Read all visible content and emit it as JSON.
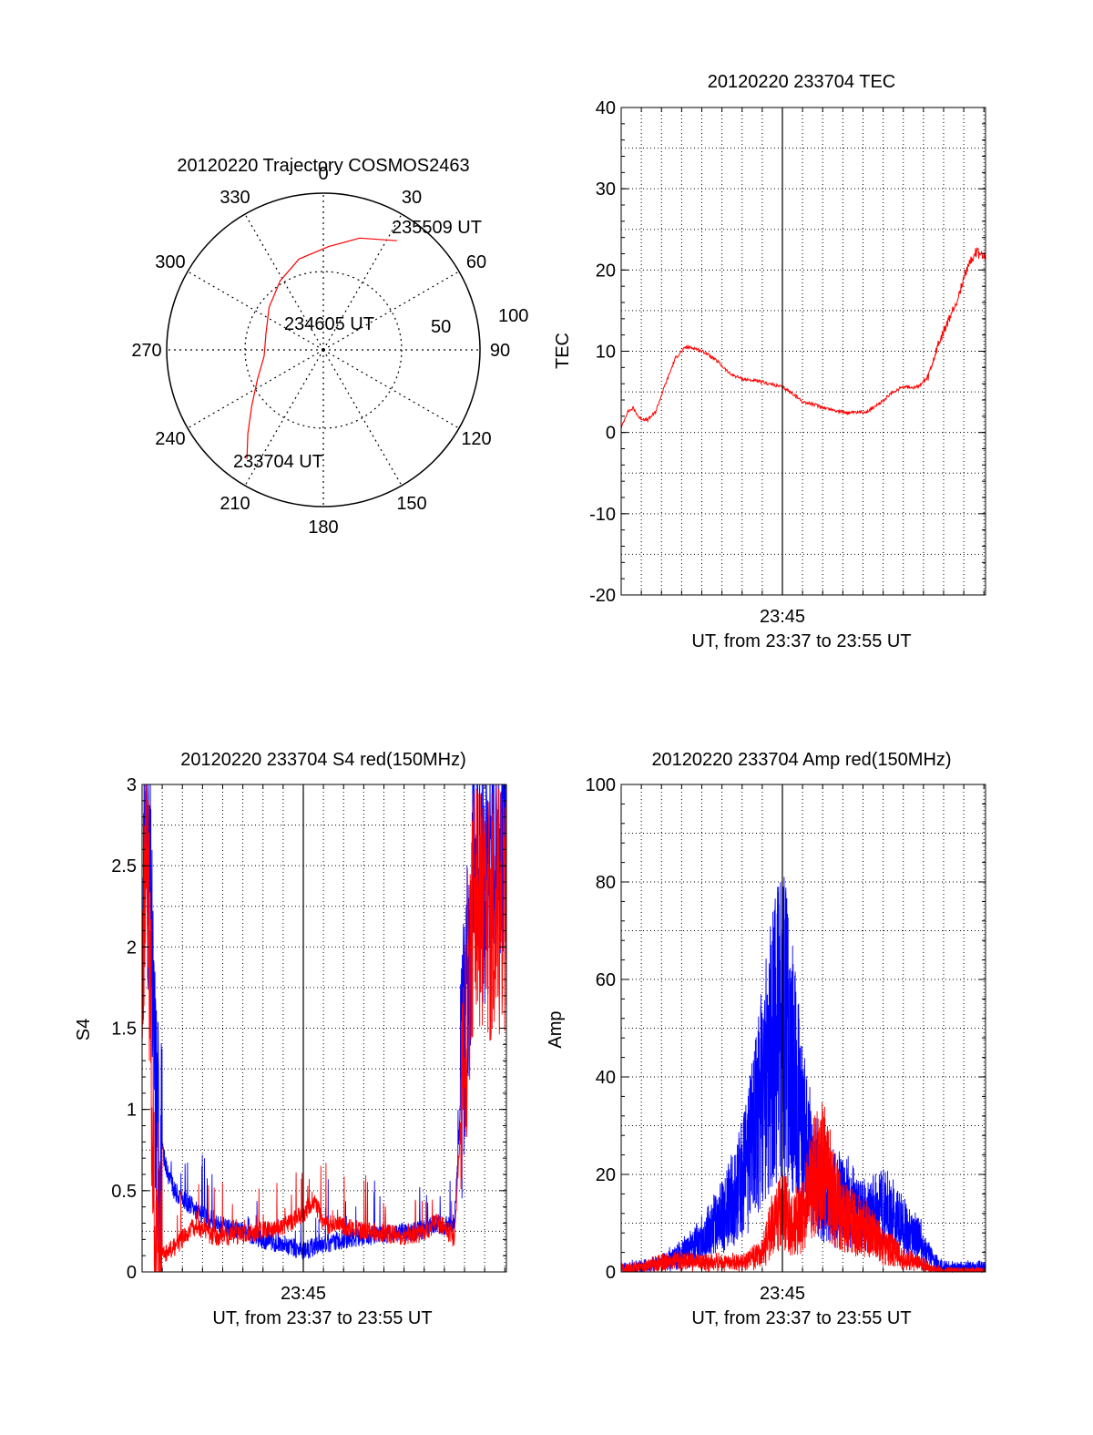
{
  "chart_data": [
    {
      "type": "polar",
      "title": "20120220 Trajectory COSMOS2463",
      "angle_ticks": [
        "0",
        "30",
        "60",
        "90",
        "120",
        "150",
        "180",
        "210",
        "240",
        "270",
        "300",
        "330"
      ],
      "angle_tick_values": [
        0,
        30,
        60,
        90,
        120,
        150,
        180,
        210,
        240,
        270,
        300,
        330
      ],
      "radial_ticks": [
        "50",
        "100"
      ],
      "radial_tick_values": [
        50,
        100
      ],
      "r_max": 100,
      "line_color": "#ff0000",
      "trajectory": [
        {
          "az": 215,
          "r": 85
        },
        {
          "az": 222,
          "r": 72
        },
        {
          "az": 232,
          "r": 58
        },
        {
          "az": 246,
          "r": 46
        },
        {
          "az": 264,
          "r": 38
        },
        {
          "az": 285,
          "r": 38
        },
        {
          "az": 308,
          "r": 44
        },
        {
          "az": 328,
          "r": 52
        },
        {
          "az": 345,
          "r": 60
        },
        {
          "az": 3,
          "r": 66
        },
        {
          "az": 18,
          "r": 75
        },
        {
          "az": 34,
          "r": 84
        }
      ],
      "annotations": {
        "start": "233704 UT",
        "mid": "234605 UT",
        "end": "235509 UT"
      }
    },
    {
      "type": "line",
      "title": "20120220 233704 TEC",
      "xlabel": "UT, from 23:37 to 23:55 UT",
      "ylabel": "TEC",
      "x_tick_labels": [
        "23:45"
      ],
      "x_range_minutes": [
        0,
        18.08
      ],
      "x_tick_minutes": [
        8
      ],
      "ylim": [
        -20,
        40
      ],
      "y_ticks": [
        -20,
        -10,
        0,
        10,
        20,
        30,
        40
      ],
      "grid": true,
      "series": [
        {
          "color": "#ff0000",
          "x": [
            0,
            0.3,
            0.6,
            0.9,
            1.3,
            1.7,
            2.2,
            2.7,
            3.2,
            3.6,
            4.2,
            4.8,
            5.4,
            6.0,
            6.5,
            7.0,
            7.5,
            8.0,
            8.5,
            9.0,
            9.6,
            10.3,
            11.0,
            11.6,
            12.2,
            12.8,
            13.4,
            14.0,
            14.6,
            15.2,
            15.7,
            16.2,
            16.7,
            17.2,
            17.6,
            18.08
          ],
          "y": [
            0.5,
            2.5,
            3,
            1.8,
            1.5,
            2.5,
            6,
            9.2,
            10.5,
            10.4,
            9.8,
            8.7,
            7.2,
            6.6,
            6.4,
            6.2,
            5.9,
            5.6,
            4.8,
            3.8,
            3.4,
            2.9,
            2.5,
            2.4,
            2.6,
            3.5,
            4.8,
            5.7,
            5.5,
            6.5,
            10.5,
            13.5,
            16.5,
            20.5,
            22.2,
            21.5
          ]
        }
      ]
    },
    {
      "type": "line",
      "title": "20120220 233704 S4 red(150MHz)",
      "xlabel": "UT, from 23:37 to 23:55 UT",
      "ylabel": "S4",
      "x_tick_labels": [
        "23:45"
      ],
      "x_range_minutes": [
        0,
        18.08
      ],
      "x_tick_minutes": [
        8
      ],
      "ylim": [
        0,
        3
      ],
      "y_ticks": [
        0,
        0.5,
        1,
        1.5,
        2,
        2.5,
        3
      ],
      "y_tick_labels": [
        "0",
        "0.5",
        "1",
        "1.5",
        "2",
        "2.5",
        "3"
      ],
      "grid": true,
      "series": [
        {
          "color": "#0000ff",
          "x": [
            0,
            0.2,
            0.4,
            0.6,
            0.8,
            1.0,
            1.3,
            1.6,
            2.0,
            2.5,
            3.0,
            3.5,
            4.0,
            5.0,
            6.0,
            7.0,
            8.0,
            9.0,
            10.0,
            11.0,
            12.0,
            13.0,
            14.0,
            14.6,
            15.0,
            15.5,
            16.0,
            16.5,
            17.0,
            17.5,
            18.08
          ],
          "y": [
            2.2,
            2.7,
            2.3,
            1.3,
            0.9,
            0.75,
            0.6,
            0.5,
            0.45,
            0.4,
            0.35,
            0.3,
            0.28,
            0.25,
            0.2,
            0.17,
            0.13,
            0.17,
            0.2,
            0.22,
            0.23,
            0.24,
            0.26,
            0.3,
            0.28,
            0.3,
            1.5,
            2.6,
            2.4,
            2.6,
            2.7
          ]
        },
        {
          "color": "#ff0000",
          "x": [
            0,
            0.2,
            0.4,
            0.6,
            0.8,
            1.0,
            1.3,
            1.6,
            2.0,
            2.5,
            3.0,
            3.5,
            4.0,
            5.0,
            6.0,
            7.0,
            8.0,
            8.5,
            9.0,
            10.0,
            11.0,
            12.0,
            13.0,
            14.0,
            14.6,
            15.0,
            15.5,
            16.0,
            16.5,
            17.0,
            17.5,
            18.08
          ],
          "y": [
            2.0,
            2.6,
            1.8,
            0.2,
            0.12,
            0.12,
            0.12,
            0.15,
            0.2,
            0.28,
            0.25,
            0.22,
            0.22,
            0.23,
            0.25,
            0.28,
            0.35,
            0.45,
            0.3,
            0.28,
            0.25,
            0.24,
            0.22,
            0.24,
            0.3,
            0.28,
            0.2,
            1.4,
            2.4,
            2.0,
            2.3,
            2.2
          ]
        }
      ]
    },
    {
      "type": "line",
      "title": "20120220 233704 Amp red(150MHz)",
      "xlabel": "UT, from 23:37 to 23:55 UT",
      "ylabel": "Amp",
      "x_tick_labels": [
        "23:45"
      ],
      "x_range_minutes": [
        0,
        18.08
      ],
      "x_tick_minutes": [
        8
      ],
      "ylim": [
        0,
        100
      ],
      "y_ticks": [
        0,
        20,
        40,
        60,
        80,
        100
      ],
      "grid": true,
      "series": [
        {
          "color": "#0000ff",
          "x": [
            0,
            1,
            2,
            3,
            4,
            5,
            6,
            6.5,
            7,
            7.5,
            8.0,
            8.5,
            9.0,
            9.5,
            10,
            11,
            12,
            13,
            14,
            15,
            15.5,
            16,
            17,
            18.08
          ],
          "y": [
            1,
            1,
            2,
            4,
            7,
            12,
            20,
            28,
            38,
            48,
            55,
            44,
            30,
            22,
            16,
            16,
            12,
            14,
            10,
            6,
            2,
            1,
            1,
            1
          ]
        },
        {
          "color": "#ff0000",
          "x": [
            0,
            1,
            2,
            3,
            4,
            5,
            6,
            7,
            7.5,
            8.0,
            8.5,
            9.0,
            9.5,
            10,
            10.5,
            11,
            12,
            13,
            14,
            15,
            15.5,
            16,
            18.08
          ],
          "y": [
            0.5,
            1,
            2,
            2.5,
            2,
            2,
            2,
            4,
            10,
            14,
            10,
            12,
            20,
            22,
            18,
            12,
            10,
            6,
            3,
            1.5,
            0.5,
            0,
            0
          ]
        }
      ]
    }
  ]
}
